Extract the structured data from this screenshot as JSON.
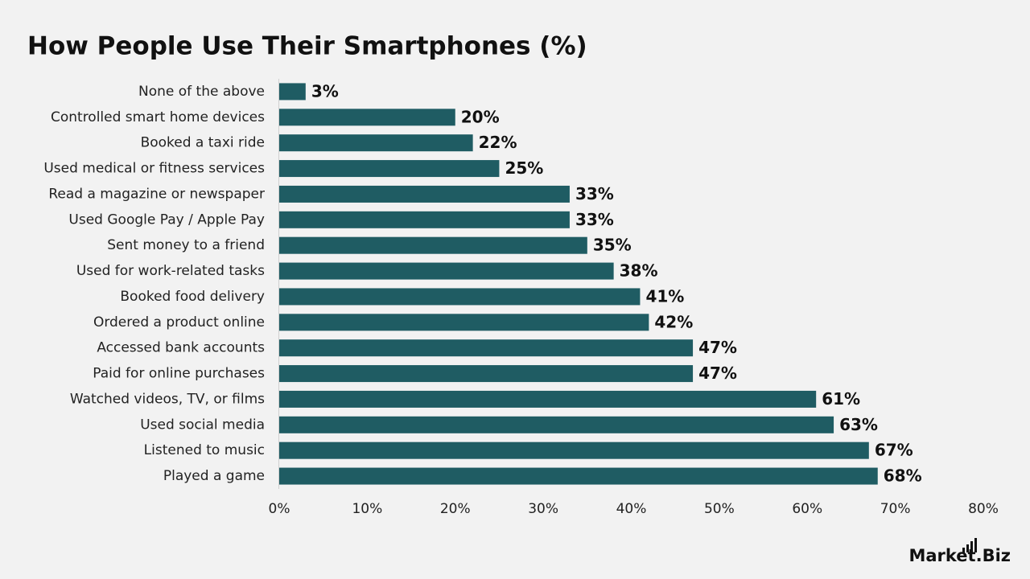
{
  "chart_data": {
    "type": "bar",
    "orientation": "horizontal",
    "title": "How People Use Their Smartphones (%)",
    "categories": [
      "None of the above",
      "Controlled smart home devices",
      "Booked a taxi ride",
      "Used medical or fitness services",
      "Read a magazine or newspaper",
      "Used Google Pay / Apple Pay",
      "Sent money to a friend",
      "Used for work-related tasks",
      "Booked food delivery",
      "Ordered a product online",
      "Accessed bank accounts",
      "Paid for online purchases",
      "Watched videos, TV, or films",
      "Used social media",
      "Listened to music",
      "Played a game"
    ],
    "values": [
      3,
      20,
      22,
      25,
      33,
      33,
      35,
      38,
      41,
      42,
      47,
      47,
      61,
      63,
      67,
      68
    ],
    "value_labels": [
      "3%",
      "20%",
      "22%",
      "25%",
      "33%",
      "33%",
      "35%",
      "38%",
      "41%",
      "42%",
      "47%",
      "47%",
      "61%",
      "63%",
      "67%",
      "68%"
    ],
    "color": "#1f5c63",
    "xlim": [
      0,
      80
    ],
    "xticks": [
      {
        "value": 0,
        "label": "0%"
      },
      {
        "value": 10,
        "label": "10%"
      },
      {
        "value": 20,
        "label": "20%"
      },
      {
        "value": 30,
        "label": "30%"
      },
      {
        "value": 40,
        "label": "40%"
      },
      {
        "value": 50,
        "label": "50%"
      },
      {
        "value": 60,
        "label": "60%"
      },
      {
        "value": 70,
        "label": "70%"
      },
      {
        "value": 80,
        "label": "80%"
      }
    ],
    "grid": false
  },
  "brand": "Market.Biz"
}
